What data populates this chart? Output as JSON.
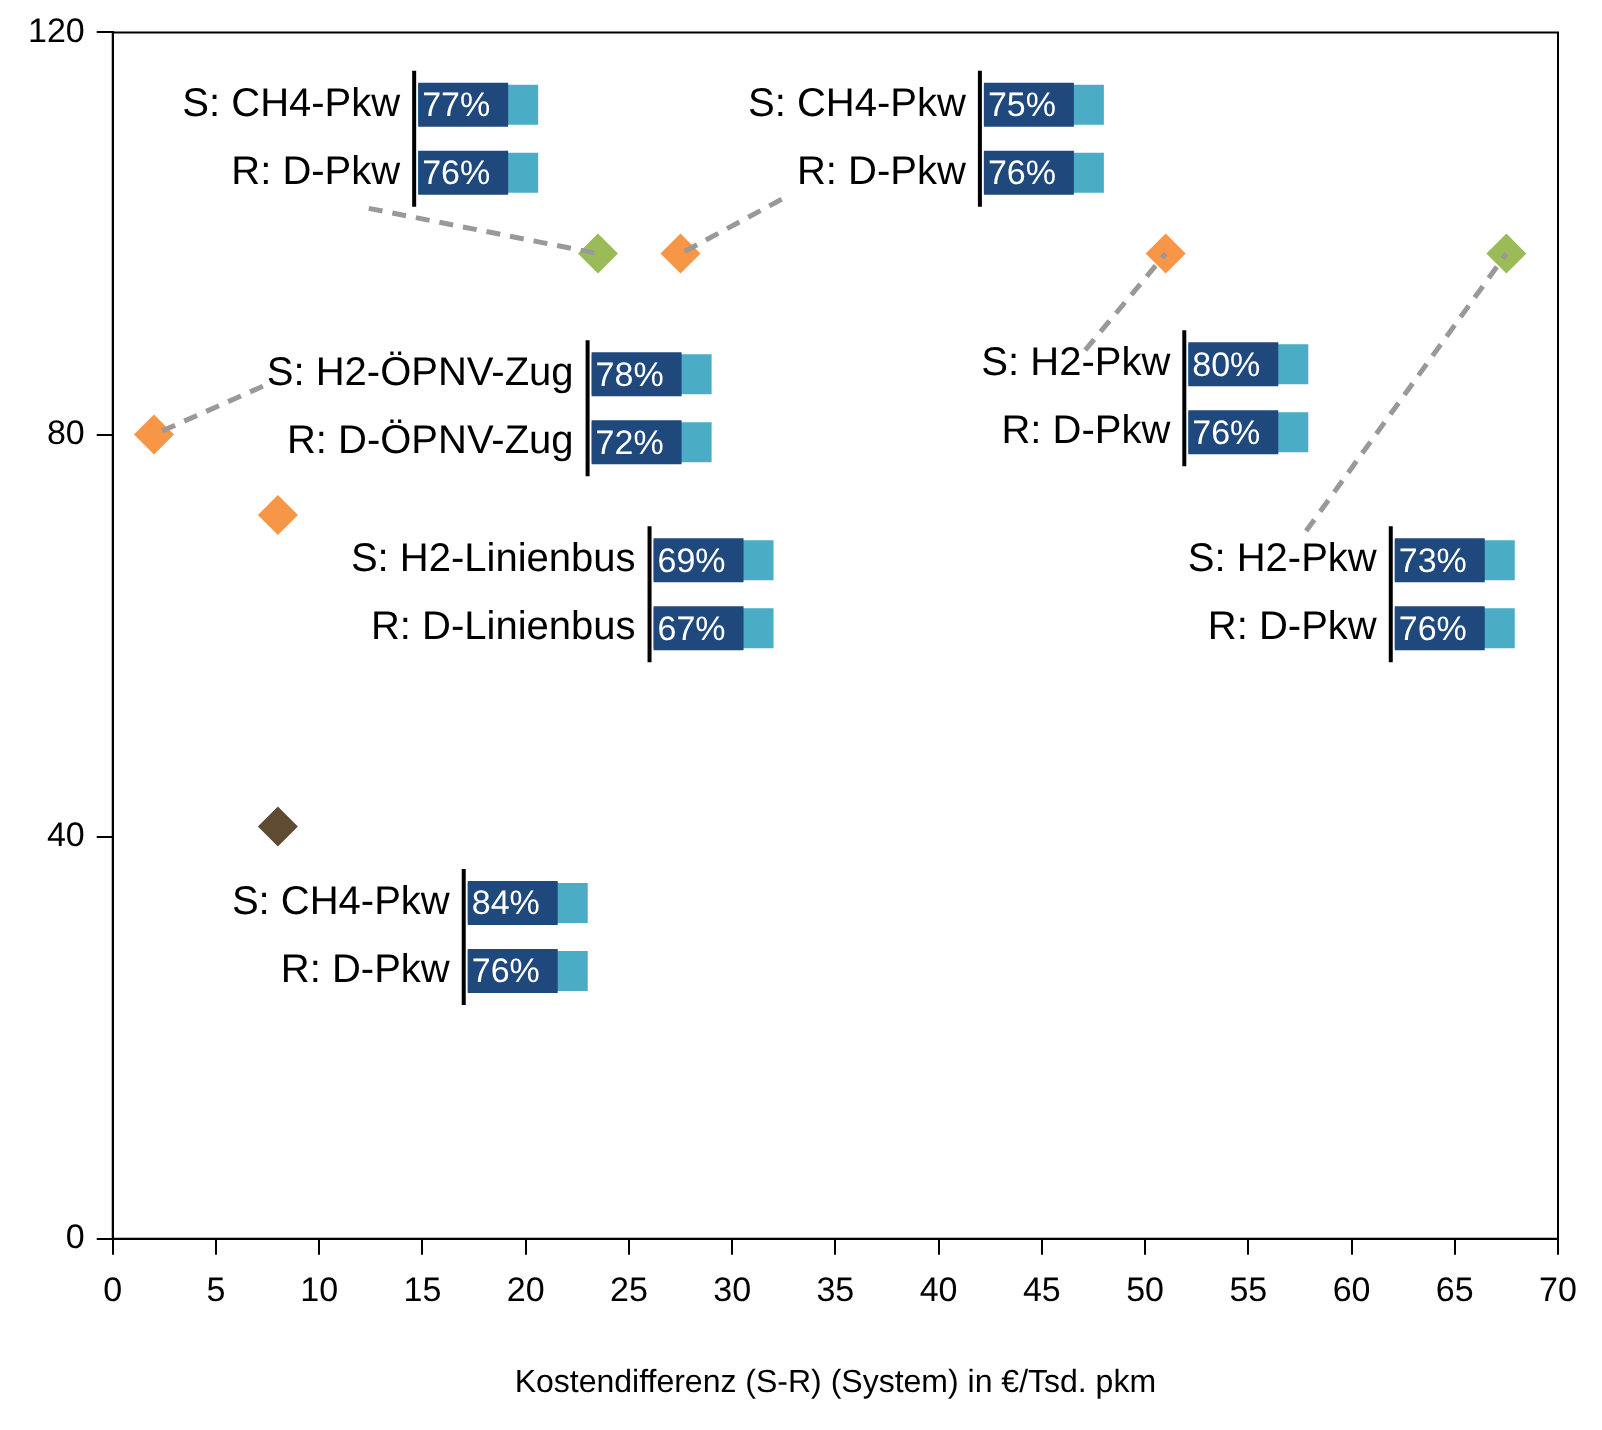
{
  "chart_data": {
    "type": "scatter",
    "xlabel": "Kostendifferenz (S-R) (System) in €/Tsd. pkm",
    "x": [
      2,
      8,
      8,
      23.5,
      27.5,
      51,
      67.5
    ],
    "values": [
      80,
      72,
      41,
      98,
      98,
      98,
      98
    ],
    "colors": [
      "#f79646",
      "#f79646",
      "#5f4b32",
      "#9bbb59",
      "#f79646",
      "#f79646",
      "#9bbb59"
    ],
    "marker": "diamond",
    "grid": false,
    "legend": false,
    "xlim": [
      0,
      70
    ],
    "xticks": [
      0,
      5,
      10,
      15,
      20,
      25,
      30,
      35,
      40,
      45,
      50,
      55,
      60,
      65,
      70
    ],
    "ylim": [
      0,
      120
    ],
    "yticks": [
      0,
      40,
      80,
      120
    ],
    "annotations": [
      {
        "text": "S: H2-ÖPNV-Zug",
        "x": 2,
        "y": 80
      },
      "78%",
      "R: D-ÖPNV-Zug",
      "72%",
      "S: H2-Linienbus",
      "69%",
      "R: D-Linienbus",
      "67%",
      "S: CH4-Pkw",
      "84%",
      "R: D-Pkw",
      "76%",
      "S: CH4-Pkw",
      "77%",
      {
        "text": "R: D-Pkw",
        "x": 23.5,
        "y": 98
      },
      "76%",
      "S: CH4-Pkw",
      "75%",
      {
        "text": "R: D-Pkw",
        "x": 27.5,
        "y": 98
      },
      "76%",
      {
        "text": "S: H2-Pkw",
        "x": 51,
        "y": 98
      },
      "80%",
      "R: D-Pkw",
      "76%",
      {
        "text": "S: H2-Pkw",
        "x": 67.5,
        "y": 98
      },
      "73%",
      "R: D-Pkw",
      "76%"
    ]
  }
}
